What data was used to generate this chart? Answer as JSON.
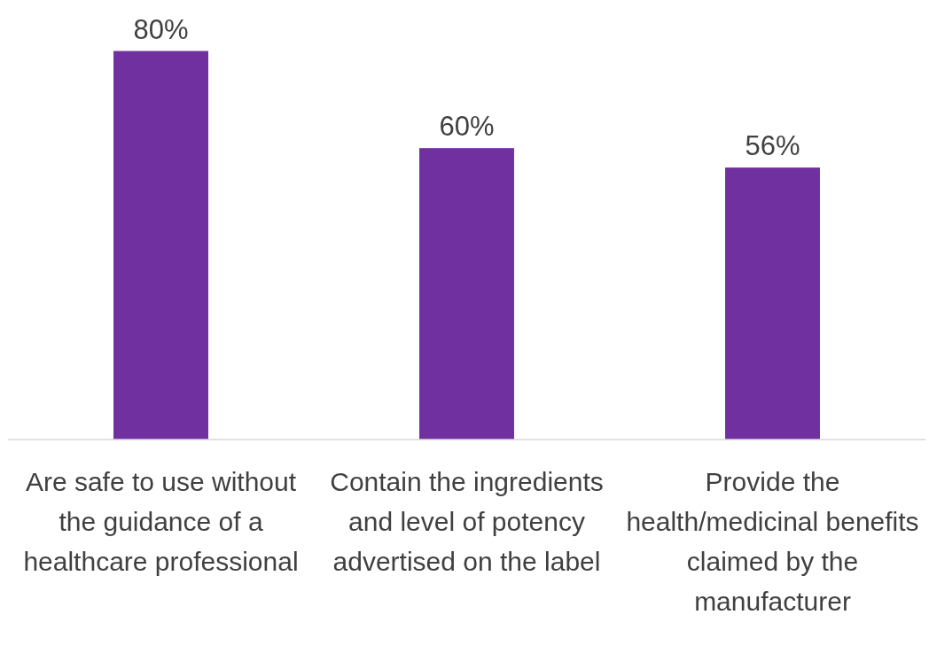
{
  "chart_data": {
    "type": "bar",
    "categories": [
      "Are safe to use without the guidance of a healthcare professional",
      "Contain the ingredients and level of potency advertised on the label",
      "Provide the health/medicinal benefits claimed by the manufacturer"
    ],
    "values": [
      80,
      60,
      56
    ],
    "value_labels": [
      "80%",
      "60%",
      "56%"
    ],
    "color": "#7030a0"
  }
}
